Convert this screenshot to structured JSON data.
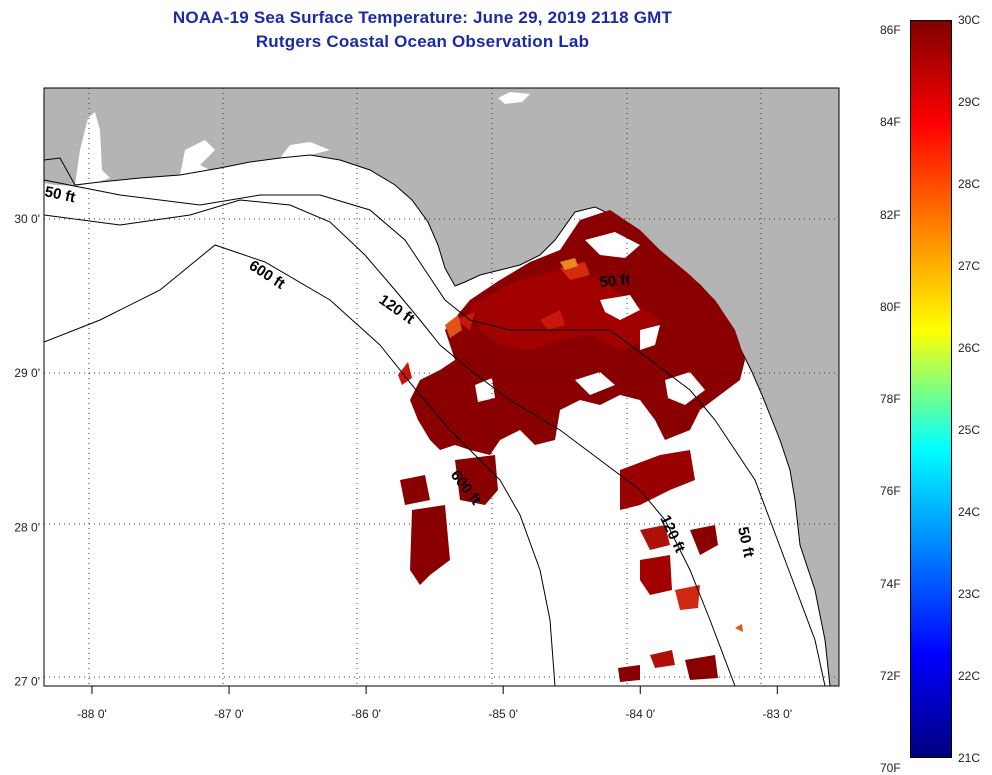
{
  "title": {
    "line1": "NOAA-19 Sea Surface Temperature:  June 29, 2019 2118 GMT",
    "line2": "Rutgers Coastal Ocean Observation Lab"
  },
  "map": {
    "lon_range": [
      -88.35,
      -82.55
    ],
    "lat_range": [
      26.97,
      30.85
    ],
    "lon_ticks": [
      {
        "value": -88,
        "label": "-88 0'"
      },
      {
        "value": -87,
        "label": "-87 0'"
      },
      {
        "value": -86,
        "label": "-86 0'"
      },
      {
        "value": -85,
        "label": "-85 0'"
      },
      {
        "value": -84,
        "label": "-84 0'"
      },
      {
        "value": -83,
        "label": "-83 0'"
      }
    ],
    "lat_ticks": [
      {
        "value": 30,
        "label": "30 0'"
      },
      {
        "value": 29,
        "label": "29 0'"
      },
      {
        "value": 28,
        "label": "28 0'"
      },
      {
        "value": 27,
        "label": "27 0'"
      }
    ],
    "gridlines": "dotted",
    "depth_contours": [
      {
        "label": "50 ft"
      },
      {
        "label": "120 ft"
      },
      {
        "label": "600 ft"
      },
      {
        "label": "50 ft"
      },
      {
        "label": "600 ft"
      },
      {
        "label": "120 ft"
      },
      {
        "label": "50 ft"
      }
    ],
    "colors": {
      "land": "#b4b4b4",
      "ocean_no_data": "#ffffff",
      "sst_dominant": "#8a0000"
    }
  },
  "colorbar": {
    "min_c": 21,
    "max_c": 30,
    "celsius_labels": [
      "30C",
      "29C",
      "28C",
      "27C",
      "26C",
      "25C",
      "24C",
      "23C",
      "22C",
      "21C"
    ],
    "fahrenheit_labels": [
      "86F",
      "84F",
      "82F",
      "80F",
      "78F",
      "76F",
      "74F",
      "72F",
      "70F"
    ],
    "colormap": "jet"
  }
}
